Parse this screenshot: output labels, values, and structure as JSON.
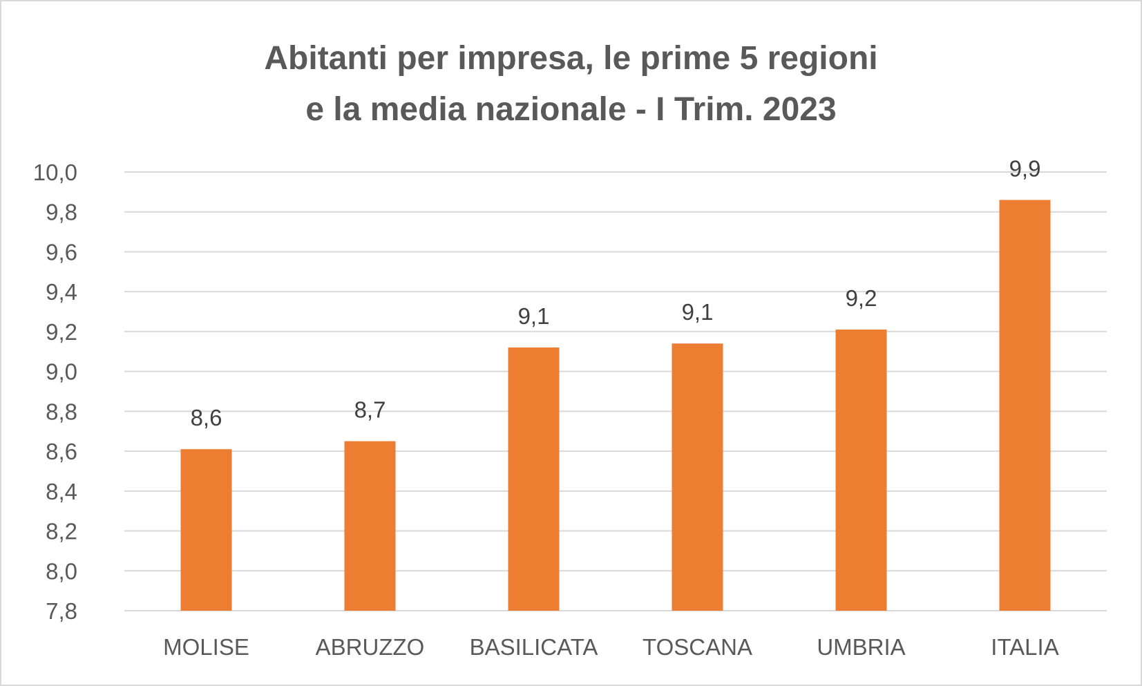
{
  "chart_data": {
    "type": "bar",
    "title_lines": [
      "Abitanti per impresa, le prime 5 regioni",
      "e la media nazionale - I Trim. 2023"
    ],
    "categories": [
      "MOLISE",
      "ABRUZZO",
      "BASILICATA",
      "TOSCANA",
      "UMBRIA",
      "ITALIA"
    ],
    "values": [
      8.61,
      8.65,
      9.12,
      9.14,
      9.21,
      9.86
    ],
    "data_labels": [
      "8,6",
      "8,7",
      "9,1",
      "9,1",
      "9,2",
      "9,9"
    ],
    "ylim": [
      7.8,
      10.0
    ],
    "yticks": [
      "7,8",
      "8,0",
      "8,2",
      "8,4",
      "8,6",
      "8,8",
      "9,0",
      "9,2",
      "9,4",
      "9,6",
      "9,8",
      "10,0"
    ],
    "grid": true,
    "legend": "none",
    "bar_color": "#ed7d31",
    "grid_color": "#d9d9d9",
    "xlabel": "",
    "ylabel": ""
  }
}
